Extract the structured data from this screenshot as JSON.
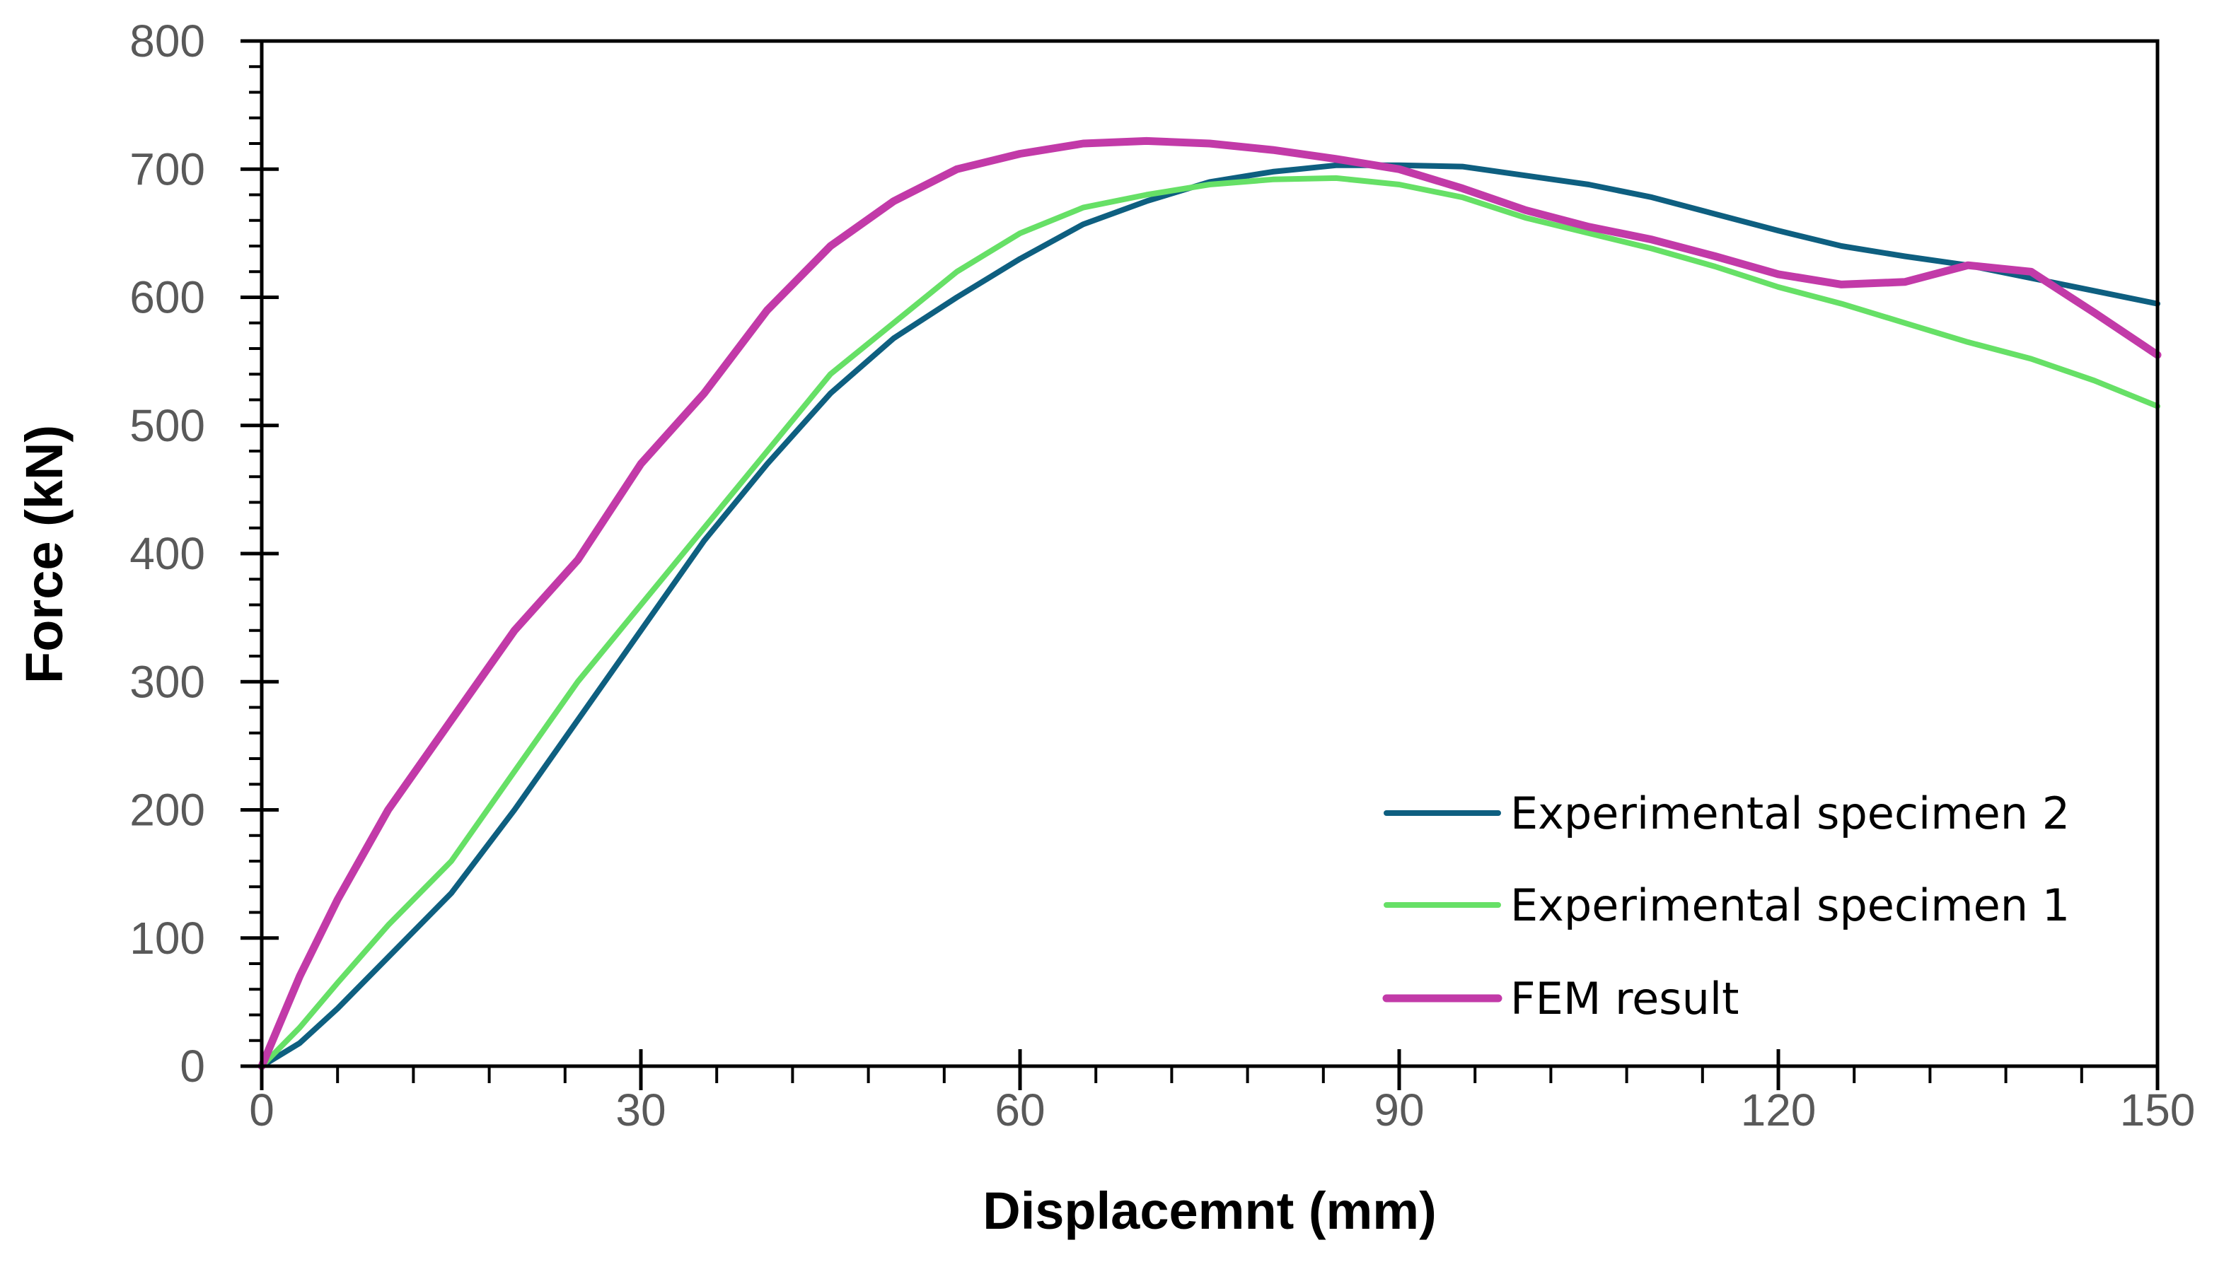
{
  "chart_data": {
    "type": "line",
    "title": "",
    "xlabel": "Displacemnt (mm)",
    "ylabel": "Force (kN)",
    "xlim": [
      0,
      150
    ],
    "ylim": [
      0,
      800
    ],
    "xticks": [
      0,
      30,
      60,
      90,
      120,
      150
    ],
    "yticks": [
      0,
      100,
      200,
      300,
      400,
      500,
      600,
      700,
      800
    ],
    "grid": false,
    "legend_position": "bottom-right",
    "series": [
      {
        "name": "Experimental specimen 2",
        "color": "#0e5f80",
        "x": [
          0,
          3,
          6,
          10,
          15,
          20,
          25,
          30,
          35,
          40,
          45,
          50,
          55,
          60,
          65,
          70,
          75,
          80,
          82,
          85,
          90,
          95,
          100,
          105,
          110,
          115,
          120,
          125,
          130,
          135,
          140,
          145,
          150
        ],
        "y": [
          0,
          18,
          45,
          85,
          135,
          200,
          270,
          340,
          410,
          470,
          525,
          568,
          600,
          630,
          657,
          675,
          690,
          698,
          700,
          703,
          703,
          702,
          695,
          688,
          678,
          665,
          652,
          640,
          632,
          625,
          615,
          605,
          595
        ]
      },
      {
        "name": "Experimental specimen 1",
        "color": "#66e066",
        "x": [
          0,
          3,
          6,
          10,
          15,
          20,
          25,
          30,
          35,
          40,
          45,
          50,
          55,
          60,
          65,
          70,
          75,
          80,
          85,
          90,
          95,
          100,
          105,
          110,
          115,
          120,
          125,
          130,
          135,
          140,
          145,
          150
        ],
        "y": [
          0,
          30,
          65,
          110,
          160,
          230,
          300,
          360,
          420,
          480,
          540,
          580,
          620,
          650,
          670,
          680,
          688,
          692,
          693,
          688,
          678,
          662,
          650,
          638,
          624,
          608,
          595,
          580,
          565,
          552,
          535,
          515
        ]
      },
      {
        "name": "FEM result",
        "color": "#c23aa8",
        "x": [
          0,
          3,
          6,
          10,
          15,
          20,
          25,
          30,
          35,
          40,
          45,
          50,
          55,
          60,
          65,
          70,
          75,
          80,
          85,
          90,
          95,
          100,
          105,
          110,
          115,
          120,
          125,
          130,
          135,
          140,
          145,
          150
        ],
        "y": [
          0,
          70,
          130,
          200,
          270,
          340,
          395,
          470,
          525,
          590,
          640,
          675,
          700,
          712,
          720,
          722,
          720,
          715,
          708,
          700,
          685,
          668,
          655,
          645,
          632,
          618,
          610,
          612,
          625,
          620,
          588,
          555
        ]
      }
    ]
  }
}
